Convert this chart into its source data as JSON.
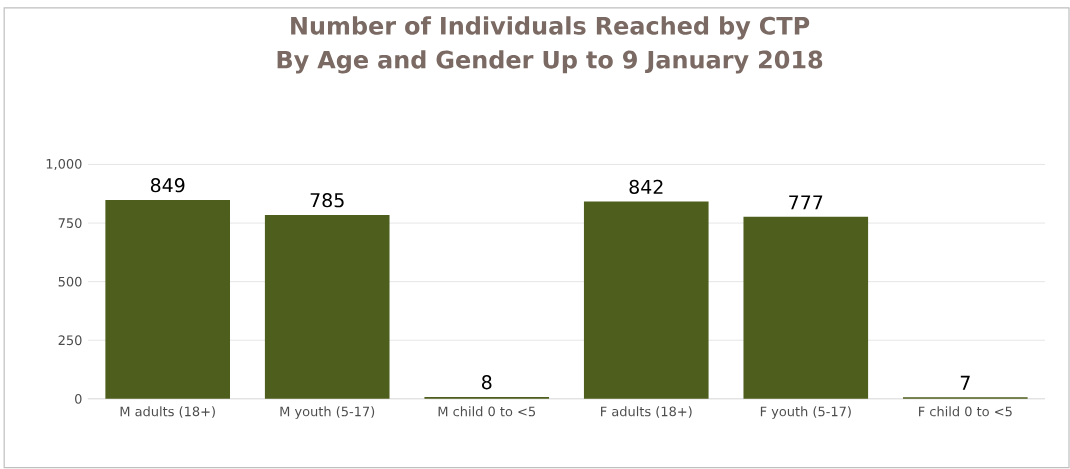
{
  "chart_data": {
    "type": "bar",
    "title": "Number of Individuals Reached by CTP By Age and Gender Up to 9 January 2018",
    "categories": [
      "M adults (18+)",
      "M youth (5-17)",
      "M child 0 to <5",
      "F adults (18+)",
      "F youth (5-17)",
      "F child 0 to <5"
    ],
    "values": [
      849,
      785,
      8,
      842,
      777,
      7
    ],
    "color": "#4e5f1d",
    "ylim": [
      0,
      1000
    ],
    "yticks": [
      0,
      250,
      500,
      750,
      {
        "value": 1000,
        "label": "1,000"
      }
    ],
    "grid": "y",
    "data_labels": true
  }
}
